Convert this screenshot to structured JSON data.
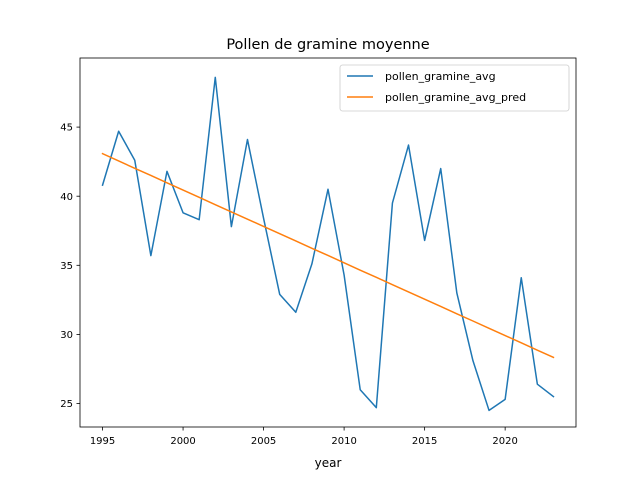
{
  "chart_data": {
    "type": "line",
    "title": "Pollen de gramine moyenne",
    "xlabel": "year",
    "ylabel": "",
    "xlim": [
      1993.6,
      2024.4
    ],
    "ylim": [
      23.3,
      50.0
    ],
    "xticks": [
      1995,
      2000,
      2005,
      2010,
      2015,
      2020
    ],
    "yticks": [
      25,
      30,
      35,
      40,
      45
    ],
    "grid": false,
    "legend_position": "top-right",
    "x": [
      1995,
      1996,
      1997,
      1998,
      1999,
      2000,
      2001,
      2002,
      2003,
      2004,
      2005,
      2006,
      2007,
      2008,
      2009,
      2010,
      2011,
      2012,
      2013,
      2014,
      2015,
      2016,
      2017,
      2018,
      2019,
      2020,
      2021,
      2022,
      2023
    ],
    "series": [
      {
        "name": "pollen_gramine_avg",
        "color": "#1f77b4",
        "values": [
          40.8,
          44.7,
          42.6,
          35.7,
          41.8,
          38.8,
          38.3,
          48.6,
          37.8,
          44.1,
          38.4,
          32.9,
          31.6,
          35.1,
          40.5,
          34.3,
          26.0,
          24.7,
          39.5,
          43.7,
          36.8,
          42.0,
          33.0,
          28.1,
          24.5,
          25.3,
          34.1,
          26.4,
          25.5
        ]
      },
      {
        "name": "pollen_gramine_avg_pred",
        "color": "#ff7f0e",
        "values": [
          43.08,
          42.55,
          42.02,
          41.5,
          40.97,
          40.44,
          39.92,
          39.39,
          38.86,
          38.34,
          37.81,
          37.29,
          36.76,
          36.23,
          35.71,
          35.18,
          34.65,
          34.13,
          33.6,
          33.07,
          32.55,
          32.02,
          31.49,
          30.97,
          30.44,
          29.92,
          29.39,
          28.86,
          28.34
        ]
      }
    ]
  }
}
